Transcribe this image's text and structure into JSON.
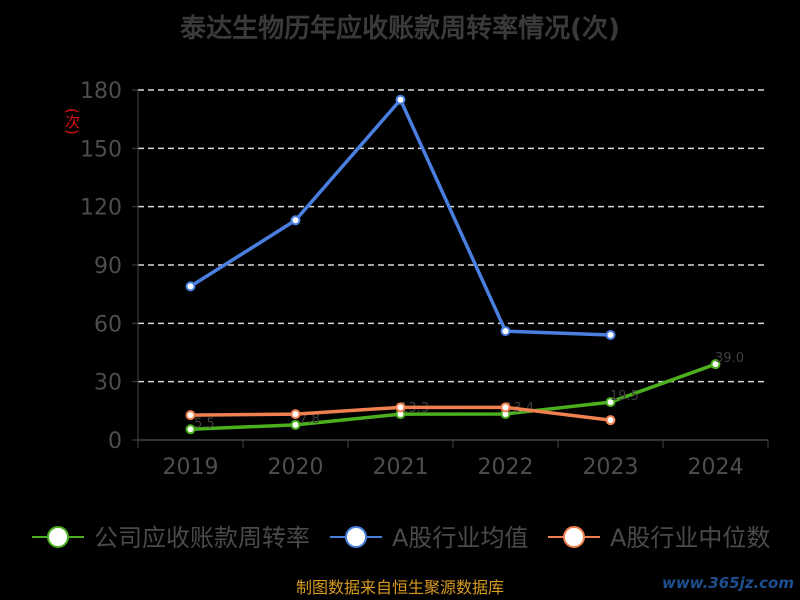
{
  "chart_data": {
    "type": "line",
    "title": "泰达生物历年应收账款周转率情况(次)",
    "ylabel": "(次)",
    "xlabel": "",
    "categories": [
      "2019",
      "2020",
      "2021",
      "2022",
      "2023",
      "2024"
    ],
    "ylim": [
      0,
      180
    ],
    "yticks": [
      0,
      30,
      60,
      90,
      120,
      150,
      180
    ],
    "grid": true,
    "legend_position": "bottom",
    "series": [
      {
        "name": "公司应收账款周转率",
        "color": "#4caf1e",
        "values": [
          5.5,
          7.8,
          13.3,
          13.4,
          19.5,
          39.0
        ],
        "labels": [
          "5.5",
          "7.8",
          "13.3",
          "13.4",
          "19.5",
          "39.0"
        ]
      },
      {
        "name": "A股行业均值",
        "color": "#4a7fe0",
        "values": [
          79.0,
          113.0,
          175.0,
          56.0,
          54.0,
          null
        ]
      },
      {
        "name": "A股行业中位数",
        "color": "#f08050",
        "values": [
          12.8,
          13.3,
          16.8,
          16.8,
          10.2,
          null
        ]
      }
    ]
  },
  "footer": "制图数据来自恒生聚源数据库",
  "watermark": "www.365jz.com"
}
